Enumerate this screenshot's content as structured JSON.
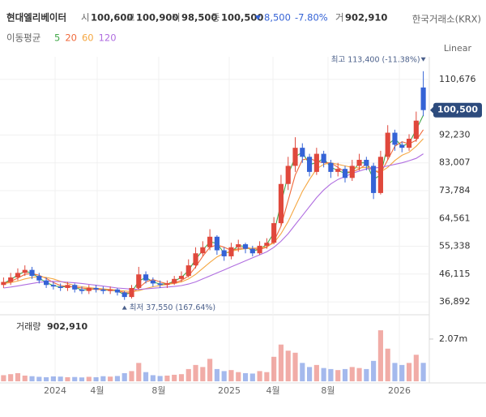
{
  "header": {
    "name": "현대엘리베이터",
    "exchange": "한국거래소(KRX)",
    "items": [
      {
        "label": "시",
        "value": "100,600"
      },
      {
        "label": "고",
        "value": "100,900"
      },
      {
        "label": "저",
        "value": "98,500"
      },
      {
        "label": "종",
        "value": "100,500"
      }
    ],
    "change": "8,500",
    "change_pct": "-7.80%",
    "volume_label": "거",
    "volume": "902,910",
    "ma_label": "이동평균",
    "scale_label": "Linear"
  },
  "chart_data": [
    {
      "type": "candlestick",
      "up_color": "#e0483c",
      "down_color": "#3563d6",
      "xlim": [
        -0.5,
        59.5
      ],
      "xticks": [
        {
          "value": 7.24,
          "label": "2024"
        },
        {
          "value": 13.16,
          "label": "4월"
        },
        {
          "value": 21.81,
          "label": "8월"
        },
        {
          "value": 31.72,
          "label": "2025"
        },
        {
          "value": 37.87,
          "label": "4월"
        },
        {
          "value": 45.61,
          "label": "8월"
        },
        {
          "value": 55.63,
          "label": "2026"
        }
      ],
      "ylim": [
        33417,
        115488
      ],
      "yticks": [
        {
          "value": 36892,
          "label": "36,892"
        },
        {
          "value": 46115,
          "label": "46,115"
        },
        {
          "value": 55338,
          "label": "55,338"
        },
        {
          "value": 64561,
          "label": "64,561"
        },
        {
          "value": 73784,
          "label": "73,784"
        },
        {
          "value": 83007,
          "label": "83,007"
        },
        {
          "value": 92230,
          "label": "92,230"
        },
        {
          "value": 110676,
          "label": "110,676"
        }
      ],
      "grid": true,
      "last_price": {
        "value": 100500,
        "label": "100,500"
      },
      "high_note": "최고 113,400 (-11.38%)",
      "low_note": "최저 37,550 (167.64%)",
      "open": [
        42500,
        43500,
        45000,
        46500,
        47500,
        45500,
        44000,
        42500,
        42000,
        41500,
        42500,
        41000,
        40500,
        41500,
        41000,
        40500,
        41000,
        40000,
        38500,
        41500,
        46000,
        44000,
        43000,
        42500,
        43000,
        44500,
        45500,
        49000,
        53000,
        55000,
        58500,
        54000,
        52000,
        55000,
        56000,
        54500,
        53000,
        55500,
        56500,
        63000,
        76000,
        82000,
        88000,
        85000,
        80000,
        86000,
        83000,
        80000,
        81000,
        78000,
        82000,
        84000,
        82000,
        73000,
        85000,
        93000,
        89000,
        88000,
        91000,
        108000
      ],
      "high": [
        45000,
        46500,
        48000,
        49000,
        48500,
        46500,
        45000,
        43500,
        43000,
        43500,
        43000,
        42000,
        42500,
        42500,
        42000,
        42000,
        41500,
        40500,
        42500,
        48500,
        47000,
        45000,
        44000,
        44000,
        45500,
        47000,
        51000,
        55000,
        57000,
        61000,
        59000,
        55000,
        56500,
        57500,
        56500,
        55500,
        57000,
        58000,
        65000,
        79000,
        85000,
        91500,
        89500,
        86000,
        88000,
        87000,
        84000,
        83000,
        82000,
        84000,
        86000,
        85000,
        83000,
        87000,
        95500,
        94000,
        90000,
        92500,
        100000,
        113400
      ],
      "low": [
        41500,
        42500,
        44000,
        45500,
        44500,
        43000,
        41500,
        41000,
        40500,
        40500,
        40000,
        39500,
        39500,
        40000,
        39500,
        39500,
        39000,
        37550,
        38000,
        41000,
        43000,
        42000,
        41500,
        41500,
        42500,
        43500,
        45000,
        48000,
        52000,
        54000,
        52500,
        50500,
        51000,
        53500,
        53000,
        52000,
        52500,
        54500,
        56000,
        62000,
        74000,
        80000,
        83000,
        78500,
        79000,
        81500,
        78000,
        78500,
        76500,
        77000,
        80500,
        80500,
        71000,
        72500,
        84000,
        87000,
        86500,
        87000,
        90000,
        98500
      ],
      "close": [
        43500,
        45000,
        46500,
        47500,
        45500,
        44000,
        42500,
        42000,
        41500,
        42500,
        41000,
        40500,
        41500,
        41000,
        40500,
        41000,
        40000,
        38500,
        41500,
        46000,
        44000,
        43000,
        42500,
        43000,
        44500,
        45500,
        49000,
        53000,
        55000,
        58500,
        54000,
        52000,
        55000,
        56000,
        54500,
        53000,
        55500,
        56500,
        63000,
        76000,
        82000,
        88000,
        85000,
        80000,
        86000,
        83000,
        80000,
        81000,
        78000,
        82000,
        84000,
        82000,
        73000,
        85000,
        93000,
        89000,
        88000,
        91000,
        97000,
        100500
      ],
      "series": [
        {
          "name": "5",
          "color": "#43a84a",
          "values": [
            43000,
            44300,
            45800,
            47000,
            46500,
            44800,
            43300,
            42300,
            41800,
            42000,
            41800,
            40800,
            41000,
            41300,
            40800,
            40800,
            40500,
            39300,
            40000,
            43800,
            45000,
            43500,
            42800,
            42800,
            43800,
            45000,
            47300,
            51000,
            54000,
            56800,
            56300,
            53000,
            53500,
            55500,
            55300,
            53800,
            54300,
            56000,
            59800,
            69500,
            79000,
            85000,
            86500,
            82500,
            83000,
            84500,
            81500,
            80500,
            79500,
            80000,
            83000,
            83000,
            77500,
            79000,
            89000,
            91000,
            88500,
            89500,
            94000,
            98800
          ]
        },
        {
          "name": "20",
          "color": "#f06a3c",
          "values": [
            43000,
            43700,
            44800,
            46000,
            46300,
            45700,
            44700,
            43300,
            42300,
            42000,
            41800,
            41500,
            41200,
            41000,
            41000,
            40900,
            40600,
            40000,
            39800,
            41500,
            43500,
            44300,
            43500,
            42900,
            43200,
            44000,
            45500,
            48500,
            52000,
            55000,
            55800,
            55000,
            54000,
            54500,
            55000,
            54500,
            54300,
            55000,
            57000,
            62000,
            70500,
            79000,
            84000,
            84500,
            83500,
            83000,
            83000,
            81500,
            80000,
            80000,
            81000,
            82500,
            80500,
            79500,
            84000,
            88500,
            90000,
            89300,
            90500,
            94000
          ]
        },
        {
          "name": "60",
          "color": "#f5a742",
          "values": [
            43000,
            43300,
            43800,
            44500,
            45000,
            45300,
            45000,
            44500,
            43700,
            43000,
            42300,
            41900,
            41600,
            41400,
            41200,
            41000,
            40800,
            40500,
            40300,
            40600,
            41300,
            41900,
            42300,
            42700,
            43000,
            43500,
            44500,
            46000,
            48000,
            50000,
            51800,
            53000,
            53700,
            54200,
            54500,
            54700,
            54800,
            55200,
            56500,
            59500,
            63500,
            68500,
            73500,
            77500,
            81000,
            82500,
            83000,
            82500,
            82000,
            81500,
            81300,
            81500,
            80500,
            80000,
            81500,
            83800,
            85500,
            86500,
            88500,
            91000
          ]
        },
        {
          "name": "120",
          "color": "#b06ee0",
          "values": [
            41500,
            41800,
            42200,
            42600,
            43000,
            43400,
            43600,
            43700,
            43600,
            43400,
            43200,
            43000,
            42700,
            42400,
            42100,
            41800,
            41500,
            41300,
            41100,
            41000,
            41200,
            41400,
            41600,
            41800,
            42000,
            42300,
            42800,
            43500,
            44500,
            45500,
            46500,
            47500,
            48500,
            49500,
            50500,
            51500,
            52500,
            53500,
            55000,
            57000,
            59500,
            62500,
            65500,
            68500,
            71500,
            74000,
            76000,
            77500,
            78500,
            79500,
            80300,
            81000,
            81300,
            81500,
            82000,
            82500,
            83000,
            83700,
            84500,
            86000
          ]
        }
      ]
    },
    {
      "type": "bar",
      "title": "거래량",
      "latest": "902,910",
      "ylim": [
        0,
        3180000
      ],
      "yticks": [
        {
          "value": 2070000,
          "label": "2.07m"
        }
      ],
      "values": [
        300000,
        350000,
        400000,
        280000,
        250000,
        220000,
        200000,
        240000,
        230000,
        200000,
        210000,
        190000,
        220000,
        200000,
        250000,
        230000,
        260000,
        400000,
        500000,
        900000,
        450000,
        300000,
        260000,
        280000,
        320000,
        350000,
        600000,
        800000,
        700000,
        1100000,
        600000,
        500000,
        550000,
        450000,
        400000,
        380000,
        500000,
        450000,
        1200000,
        1800000,
        1500000,
        1400000,
        900000,
        700000,
        800000,
        650000,
        600000,
        550000,
        600000,
        700000,
        650000,
        600000,
        1000000,
        2500000,
        1600000,
        900000,
        800000,
        900000,
        1300000,
        902910
      ]
    }
  ]
}
